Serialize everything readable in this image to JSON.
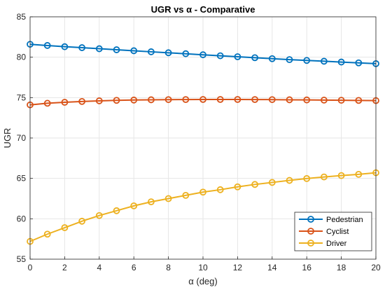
{
  "chart_data": {
    "type": "line",
    "title": "UGR vs α - Comparative",
    "xlabel": "α (deg)",
    "ylabel": "UGR",
    "x": [
      0,
      1,
      2,
      3,
      4,
      5,
      6,
      7,
      8,
      9,
      10,
      11,
      12,
      13,
      14,
      15,
      16,
      17,
      18,
      19,
      20
    ],
    "xlim": [
      0,
      20
    ],
    "ylim": [
      55,
      85
    ],
    "xticks": [
      0,
      2,
      4,
      6,
      8,
      10,
      12,
      14,
      16,
      18,
      20
    ],
    "yticks": [
      55,
      60,
      65,
      70,
      75,
      80,
      85
    ],
    "grid": true,
    "legend_position": "bottom-right",
    "marker": "circle-open",
    "series": [
      {
        "name": "Pedestrian",
        "color": "#0072BD",
        "values": [
          81.6,
          81.45,
          81.3,
          81.18,
          81.05,
          80.92,
          80.8,
          80.67,
          80.55,
          80.43,
          80.3,
          80.18,
          80.06,
          79.94,
          79.82,
          79.7,
          79.6,
          79.5,
          79.4,
          79.3,
          79.2
        ]
      },
      {
        "name": "Cyclist",
        "color": "#D95319",
        "values": [
          74.1,
          74.3,
          74.42,
          74.52,
          74.6,
          74.66,
          74.7,
          74.73,
          74.75,
          74.76,
          74.77,
          74.77,
          74.77,
          74.76,
          74.75,
          74.73,
          74.71,
          74.69,
          74.67,
          74.65,
          74.63
        ]
      },
      {
        "name": "Driver",
        "color": "#EDB120",
        "values": [
          57.2,
          58.1,
          58.9,
          59.7,
          60.4,
          61.0,
          61.6,
          62.1,
          62.5,
          62.9,
          63.3,
          63.6,
          63.95,
          64.25,
          64.5,
          64.75,
          64.98,
          65.18,
          65.35,
          65.5,
          65.7
        ]
      }
    ]
  }
}
